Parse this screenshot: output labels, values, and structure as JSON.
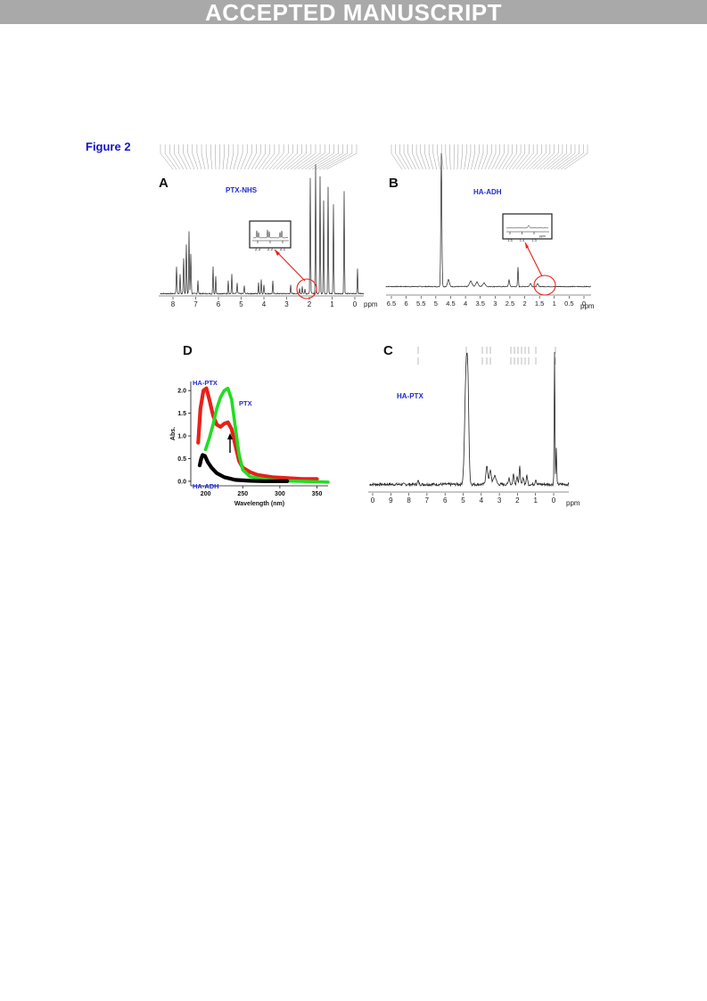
{
  "banner": "ACCEPTED MANUSCRIPT",
  "figure_title": "Figure 2",
  "colors": {
    "banner_bg": "#a9a9a9",
    "label_blue": "#1f2bd0",
    "title_blue": "#1414c8",
    "red": "#e8201a",
    "green": "#22dd22",
    "black": "#000000"
  },
  "panels": {
    "A": {
      "letter": "A",
      "label": "PTX-NHS",
      "x_ticks": [
        "8",
        "7",
        "6",
        "5",
        "4",
        "3",
        "2",
        "1",
        "0"
      ],
      "unit": "ppm",
      "inset_ticks": [
        "2.3",
        "2.2",
        "2.1"
      ]
    },
    "B": {
      "letter": "B",
      "label": "HA-ADH",
      "x_ticks": [
        "6.5",
        "6",
        "5.5",
        "5",
        "4.5",
        "4",
        "3.5",
        "3",
        "2.5",
        "2",
        "1.5",
        "1",
        "0.5",
        "0"
      ],
      "unit": "ppm",
      "inset_ticks": [
        "1.5",
        "1.4",
        "1.3"
      ],
      "inset_unit": "ppm"
    },
    "C": {
      "letter": "C",
      "label": "HA-PTX",
      "x_ticks": [
        "0",
        "9",
        "8",
        "7",
        "6",
        "5",
        "4",
        "3",
        "2",
        "1",
        "0"
      ],
      "unit": "ppm"
    },
    "D": {
      "letter": "D"
    }
  },
  "chart_data": {
    "type": "line",
    "xlabel": "Wavelength (nm)",
    "ylabel": "Abs.",
    "xlim": [
      180,
      365
    ],
    "ylim": [
      -0.1,
      2.2
    ],
    "x_ticks": [
      "200",
      "250",
      "300",
      "350"
    ],
    "y_ticks": [
      "0.0",
      "0.5",
      "1.0",
      "1.5",
      "2.0"
    ],
    "series": [
      {
        "name": "HA-PTX",
        "color": "#e8201a",
        "points": [
          [
            190,
            0.85
          ],
          [
            193,
            1.6
          ],
          [
            197,
            2.0
          ],
          [
            201,
            2.05
          ],
          [
            205,
            1.8
          ],
          [
            210,
            1.45
          ],
          [
            215,
            1.25
          ],
          [
            220,
            1.2
          ],
          [
            225,
            1.27
          ],
          [
            230,
            1.3
          ],
          [
            235,
            1.15
          ],
          [
            240,
            0.8
          ],
          [
            245,
            0.45
          ],
          [
            250,
            0.3
          ],
          [
            260,
            0.2
          ],
          [
            270,
            0.14
          ],
          [
            290,
            0.09
          ],
          [
            310,
            0.07
          ],
          [
            330,
            0.05
          ],
          [
            350,
            0.05
          ]
        ]
      },
      {
        "name": "PTX",
        "color": "#22dd22",
        "points": [
          [
            200,
            0.7
          ],
          [
            205,
            0.95
          ],
          [
            210,
            1.25
          ],
          [
            215,
            1.6
          ],
          [
            220,
            1.85
          ],
          [
            225,
            2.0
          ],
          [
            230,
            2.05
          ],
          [
            235,
            1.8
          ],
          [
            240,
            1.2
          ],
          [
            245,
            0.6
          ],
          [
            250,
            0.25
          ],
          [
            260,
            0.1
          ],
          [
            280,
            0.04
          ],
          [
            300,
            0.01
          ],
          [
            330,
            0.0
          ],
          [
            365,
            -0.02
          ]
        ]
      },
      {
        "name": "HA-ADH",
        "color": "#000000",
        "points": [
          [
            192,
            0.35
          ],
          [
            194,
            0.5
          ],
          [
            196,
            0.58
          ],
          [
            199,
            0.56
          ],
          [
            203,
            0.42
          ],
          [
            208,
            0.3
          ],
          [
            215,
            0.18
          ],
          [
            225,
            0.09
          ],
          [
            240,
            0.03
          ],
          [
            260,
            0.01
          ],
          [
            280,
            0.0
          ],
          [
            310,
            0.0
          ]
        ]
      }
    ]
  }
}
